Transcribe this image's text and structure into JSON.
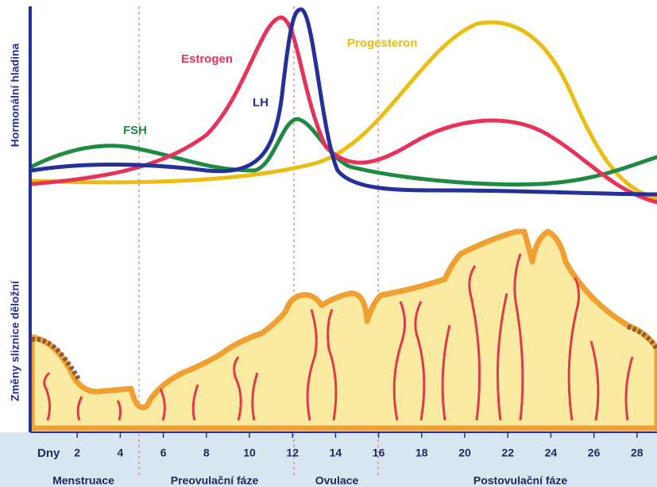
{
  "axes": {
    "y_top": "Hormonální hladina",
    "y_bottom": "Změny sliznice děložní",
    "x_unit": "Dny"
  },
  "hormones": {
    "fsh": "FSH",
    "lh": "LH",
    "estrogen": "Estrogen",
    "progesteron": "Progesteron"
  },
  "days": [
    2,
    4,
    6,
    8,
    10,
    12,
    14,
    16,
    18,
    20,
    22,
    24,
    26,
    28
  ],
  "phases": [
    "Menstruace",
    "Preovulační fáze",
    "Ovulace",
    "Postovulační fáze"
  ]
}
